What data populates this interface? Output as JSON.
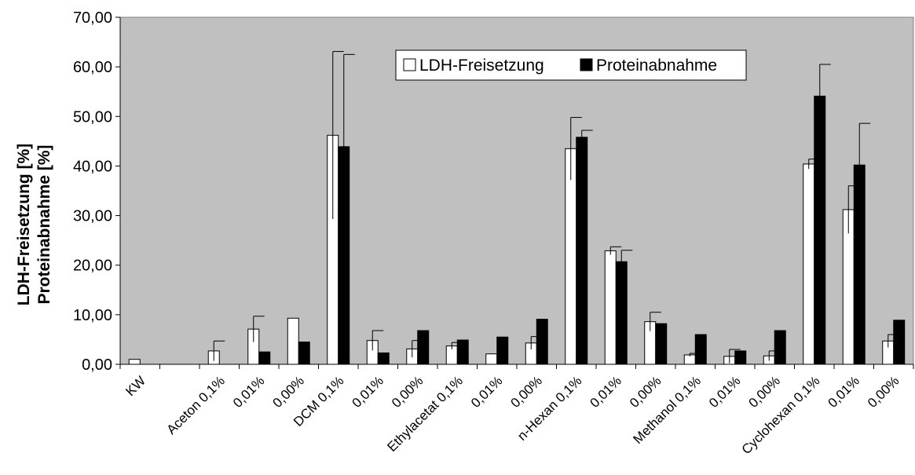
{
  "chart_data": {
    "type": "bar",
    "title": "",
    "ylabel_line1": "LDH-Freisetzung [%]",
    "ylabel_line2": "Proteinabnahme [%]",
    "xlabel": "",
    "ylim": [
      0,
      70
    ],
    "ytick_step": 10,
    "ytick_labels": [
      "0,00",
      "10,00",
      "20,00",
      "30,00",
      "40,00",
      "50,00",
      "60,00",
      "70,00"
    ],
    "grid": false,
    "legend_position": "top-center",
    "background_color": "#c0c0c0",
    "categories": [
      "KW",
      "",
      "Aceton 0,1%",
      "0,01%",
      "0,00%",
      "DCM 0,1%",
      "0,01%",
      "0,00%",
      "Ethylacetat 0,1%",
      "0,01%",
      "0,00%",
      "n-Hexan 0,1%",
      "0,01%",
      "0,00%",
      "Methanol 0,1%",
      "0,01%",
      "0,00%",
      "Cyclohexan 0,1%",
      "0,01%",
      "0,00%"
    ],
    "series": [
      {
        "name": "LDH-Freisetzung",
        "color": "#ffffff",
        "values": [
          1.0,
          0,
          2.7,
          7.1,
          9.3,
          46.2,
          4.8,
          3.1,
          3.7,
          2.1,
          4.3,
          43.5,
          22.9,
          8.6,
          1.9,
          1.6,
          1.7,
          40.4,
          31.2,
          4.7
        ],
        "errors": [
          0,
          0,
          2.0,
          2.6,
          0,
          16.9,
          2.0,
          1.7,
          0.7,
          0,
          1.3,
          6.3,
          0.8,
          1.9,
          0.3,
          1.4,
          1.0,
          1.0,
          4.8,
          1.3
        ]
      },
      {
        "name": "Proteinabnahme",
        "color": "#000000",
        "values": [
          0,
          0,
          0,
          2.5,
          4.5,
          43.9,
          2.3,
          6.8,
          4.9,
          5.5,
          9.1,
          45.8,
          20.7,
          8.2,
          6.0,
          2.7,
          6.8,
          54.1,
          40.2,
          8.9
        ],
        "errors": [
          0,
          0,
          0,
          0,
          0,
          18.6,
          0,
          0,
          0,
          0,
          0,
          1.4,
          2.3,
          0,
          0,
          0,
          0,
          6.4,
          8.4,
          0
        ]
      }
    ]
  }
}
